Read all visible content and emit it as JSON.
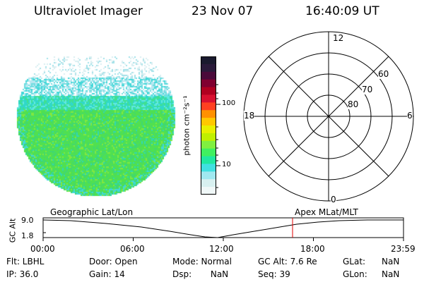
{
  "header": {
    "instrument": "Ultraviolet Imager",
    "date": "23 Nov 07",
    "time": "16:40:09 UT"
  },
  "colorbar": {
    "unit_label": "photon cm⁻²s⁻¹",
    "ticks": [
      "100",
      "10"
    ],
    "colors": [
      "#1a1a2e",
      "#2a1a3a",
      "#4a0a3a",
      "#800030",
      "#b00020",
      "#d81030",
      "#ff4020",
      "#ff9000",
      "#ffc800",
      "#e8f000",
      "#c0f000",
      "#80f040",
      "#40f060",
      "#20e8a0",
      "#40e0e0",
      "#a0e8f0",
      "#d8f0f0",
      "#f0f8f8"
    ]
  },
  "polar": {
    "labels": {
      "top": "12",
      "bottom": "0",
      "left": "18",
      "right": "6"
    },
    "lat_labels": [
      "80",
      "70",
      "60"
    ]
  },
  "timeline": {
    "left_label": "Geographic Lat/Lon",
    "right_label": "Apex MLat/MLT",
    "y_axis_title": "GC Alt",
    "y_ticks": [
      "9.0",
      "1.8"
    ],
    "x_ticks": [
      "00:00",
      "06:00",
      "12:00",
      "18:00",
      "23:59"
    ],
    "marker_color": "#e00000"
  },
  "footer": {
    "flt": "Flt: LBHL",
    "ip": "IP: 36.0",
    "door": "Door: Open",
    "gain": "Gain: 14",
    "mode": "Mode: Normal",
    "dsp": "Dsp:       NaN",
    "gcalt": "GC Alt: 7.6 Re",
    "seq": "Seq: 39",
    "glat_label": "GLat:",
    "glat_value": "NaN",
    "glon_label": "GLon:",
    "glon_value": "NaN"
  }
}
